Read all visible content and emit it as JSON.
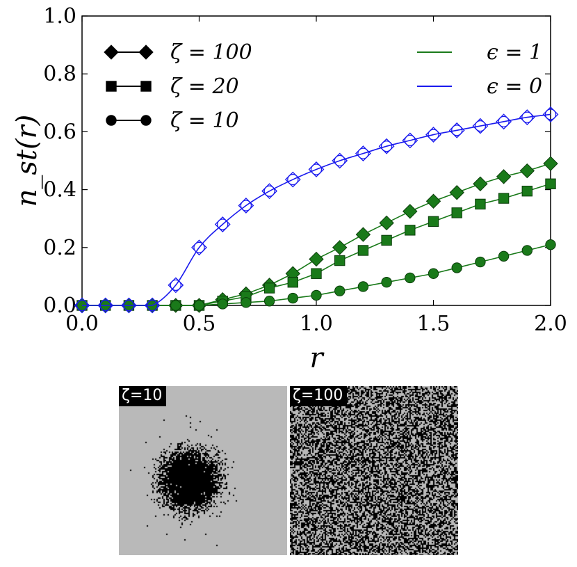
{
  "chart_data": {
    "type": "line",
    "xlabel": "r",
    "ylabel": "n_st(r)",
    "xlim": [
      0,
      2.0
    ],
    "ylim": [
      0,
      1.0
    ],
    "xticks": [
      "0.0",
      "0.5",
      "1.0",
      "1.5",
      "2.0"
    ],
    "yticks": [
      "0.0",
      "0.2",
      "0.4",
      "0.6",
      "0.8",
      "1.0"
    ],
    "grid": false,
    "x": [
      0.0,
      0.1,
      0.2,
      0.3,
      0.4,
      0.5,
      0.6,
      0.7,
      0.8,
      0.9,
      1.0,
      1.1,
      1.2,
      1.3,
      1.4,
      1.5,
      1.6,
      1.7,
      1.8,
      1.9,
      2.0
    ],
    "series": [
      {
        "name": "ζ = 100",
        "epsilon": 1,
        "color": "#1a7a1a",
        "marker": "diamond",
        "values": [
          0,
          0,
          0,
          0,
          0,
          0,
          0.02,
          0.04,
          0.07,
          0.11,
          0.16,
          0.2,
          0.245,
          0.285,
          0.325,
          0.36,
          0.39,
          0.42,
          0.445,
          0.465,
          0.49
        ]
      },
      {
        "name": "ζ = 20",
        "epsilon": 1,
        "color": "#1a7a1a",
        "marker": "square",
        "values": [
          0,
          0,
          0,
          0,
          0,
          0,
          0.015,
          0.03,
          0.06,
          0.08,
          0.11,
          0.155,
          0.19,
          0.225,
          0.26,
          0.29,
          0.32,
          0.35,
          0.37,
          0.395,
          0.42
        ]
      },
      {
        "name": "ζ = 10",
        "epsilon": 1,
        "color": "#1a7a1a",
        "marker": "circle",
        "values": [
          0,
          0,
          0,
          0,
          0,
          0,
          0.005,
          0.01,
          0.015,
          0.025,
          0.035,
          0.05,
          0.065,
          0.08,
          0.095,
          0.11,
          0.13,
          0.15,
          0.17,
          0.19,
          0.21
        ]
      },
      {
        "name": "ϵ = 0",
        "epsilon": 0,
        "color": "#1a1aee",
        "marker": "open",
        "values": [
          0,
          0,
          0,
          0,
          0.07,
          0.2,
          0.28,
          0.345,
          0.395,
          0.435,
          0.47,
          0.5,
          0.525,
          0.55,
          0.57,
          0.59,
          0.605,
          0.62,
          0.635,
          0.65,
          0.66
        ]
      }
    ],
    "legend_left": [
      {
        "label": "ζ = 100",
        "marker": "diamond"
      },
      {
        "label": "ζ = 20",
        "marker": "square"
      },
      {
        "label": "ζ = 10",
        "marker": "circle"
      }
    ],
    "legend_right": [
      {
        "label": "ϵ = 1",
        "color": "#1a7a1a"
      },
      {
        "label": "ϵ = 0",
        "color": "#1a1aee"
      }
    ],
    "legend_left_placement": "top-left",
    "legend_right_placement": "top-right"
  },
  "snapshots": [
    {
      "label": "ζ=10",
      "pattern": "cluster"
    },
    {
      "label": "ζ=100",
      "pattern": "dispersed"
    }
  ]
}
